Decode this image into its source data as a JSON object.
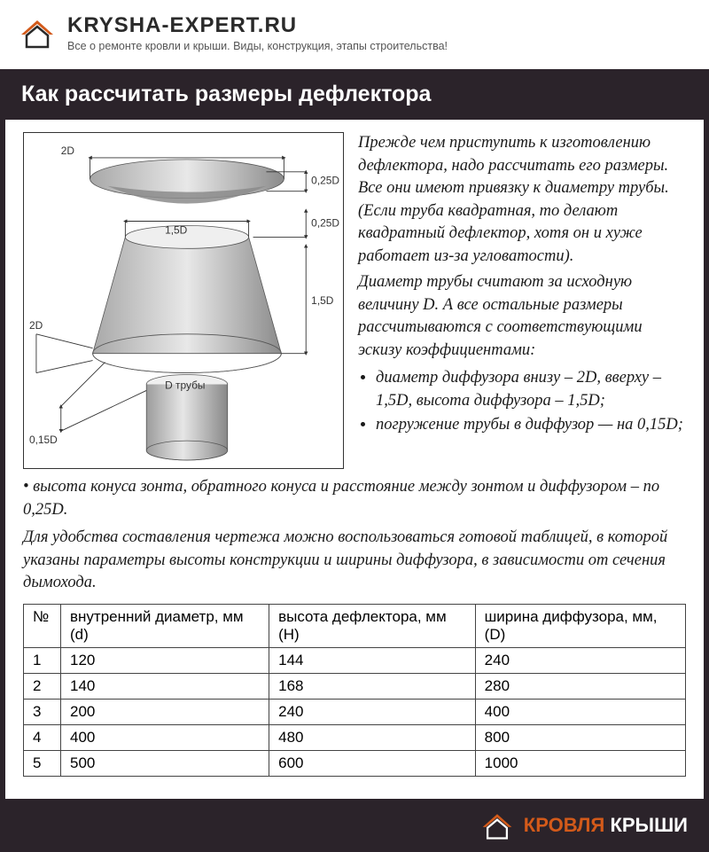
{
  "header": {
    "site_name": "KRYSHA-EXPERT.RU",
    "tagline": "Все о ремонте кровли и крыши. Виды, конструкция, этапы строительства!",
    "logo_colors": {
      "outer": "#d35a1a",
      "inner": "#2a2a2a"
    }
  },
  "title": "Как рассчитать размеры дефлектора",
  "body": {
    "para1": "Прежде чем приступить к изготовлению дефлектора, надо рассчитать его размеры. Все они имеют привязку к диаметру трубы. (Если труба квадратная, то делают квадратный дефлектор, хотя он и хуже работает из-за угловатости).",
    "para2": "Диаметр трубы считают за исходную величину D. А все остальные размеры рассчитываются с соответствующими эскизу коэффициентами:",
    "bullet1": "диаметр диффузора внизу – 2D, вверху – 1,5D, высота диффузора – 1,5D;",
    "bullet2": "погружение трубы в диффузор — на 0,15D;",
    "para3": "• высота конуса зонта, обратного конуса и расстояние между зонтом и диффузором – по 0,25D.",
    "para4": "Для удобства составления чертежа можно воспользоваться готовой таблицей, в которой указаны параметры высоты конструкции и ширины диффузора, в зависимости от сечения дымохода."
  },
  "diagram": {
    "labels": {
      "top_2D": "2D",
      "c025D_a": "0,25D",
      "c15D": "1,5D",
      "c025D_b": "0,25D",
      "side_15D": "1,5D",
      "bottom_2D": "2D",
      "c015D": "0,15D",
      "pipe": "D трубы"
    },
    "colors": {
      "shape_light": "#dcdcdc",
      "shape_mid": "#bfbfbf",
      "shape_dark": "#8b8b8b",
      "line": "#333333",
      "text": "#333333"
    },
    "font_size": 12
  },
  "table": {
    "columns": [
      "№",
      "внутренний диаметр, мм (d)",
      "высота дефлектора, мм (Н)",
      "ширина диффузора, мм, (D)"
    ],
    "rows": [
      [
        "1",
        "120",
        "144",
        "240"
      ],
      [
        "2",
        "140",
        "168",
        "280"
      ],
      [
        "3",
        "200",
        "240",
        "400"
      ],
      [
        "4",
        "400",
        "480",
        "800"
      ],
      [
        "5",
        "500",
        "600",
        "1000"
      ]
    ],
    "border_color": "#444444",
    "font_size": 17
  },
  "footer": {
    "brand1": "КРОВЛЯ",
    "brand2": "КРЫШИ",
    "colors": {
      "bg": "#2b232a",
      "white": "#ffffff",
      "orange": "#d35a1a"
    }
  }
}
